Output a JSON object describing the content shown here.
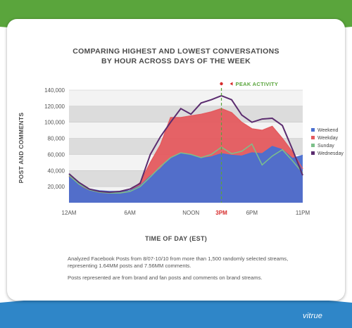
{
  "header": {
    "accent_green": "#5aa53c",
    "accent_blue": "#2f86c8"
  },
  "title_lines": [
    "COMPARING HIGHEST AND LOWEST CONVERSATIONS",
    "BY HOUR ACROSS DAYS OF THE WEEK"
  ],
  "notes": [
    "Analyzed Facebook Posts from 8/07-10/10 from more than 1,500 randomly selected streams,",
    "representing 1.64MM posts and 7.56MM comments.",
    "Posts represented are from brand and fan posts and comments on brand streams."
  ],
  "logo_text": "vitrue",
  "chart_data": {
    "type": "area",
    "xlabel": "TIME OF DAY (EST)",
    "ylabel": "POST AND COMMENTS",
    "ylim": [
      0,
      140000
    ],
    "xlim": [
      0,
      23
    ],
    "yticks": [
      20000,
      40000,
      60000,
      80000,
      100000,
      120000,
      140000
    ],
    "ytick_labels": [
      "20,000",
      "40,000",
      "60,000",
      "80,000",
      "100,000",
      "120,000",
      "140,000"
    ],
    "xticks": [
      0,
      6,
      12,
      15,
      18,
      23
    ],
    "xtick_labels": [
      "12AM",
      "6AM",
      "NOON",
      "3PM",
      "6PM",
      "11PM"
    ],
    "highlight_tick": "3PM",
    "x": [
      0,
      1,
      2,
      3,
      4,
      5,
      6,
      7,
      8,
      9,
      10,
      11,
      12,
      13,
      14,
      15,
      16,
      17,
      18,
      19,
      20,
      21,
      22,
      23
    ],
    "series": [
      {
        "name": "Weekend",
        "color": "#4a6fd0",
        "style": "area",
        "values": [
          32000,
          22000,
          17000,
          15000,
          14000,
          14000,
          15000,
          21000,
          33000,
          42000,
          56000,
          61000,
          60000,
          55000,
          57000,
          61000,
          59000,
          58000,
          62000,
          61000,
          70000,
          66000,
          55000,
          59000
        ]
      },
      {
        "name": "Weekday",
        "color": "#e45a5e",
        "style": "area",
        "values": [
          33000,
          22000,
          16000,
          13000,
          12000,
          12000,
          15000,
          25000,
          50000,
          72000,
          106000,
          106000,
          108000,
          110000,
          113000,
          117000,
          112000,
          100000,
          92000,
          90000,
          95000,
          80000,
          63000,
          42000
        ]
      },
      {
        "name": "Sunday",
        "color": "#7cc08a",
        "style": "line",
        "values": [
          34000,
          23000,
          16000,
          13000,
          12000,
          12000,
          14000,
          20000,
          32000,
          45000,
          56000,
          62000,
          60000,
          56000,
          60000,
          69000,
          61000,
          64000,
          73000,
          47000,
          58000,
          66000,
          52000,
          37000
        ]
      },
      {
        "name": "Wednesday",
        "color": "#5b2c6f",
        "style": "line",
        "values": [
          36000,
          25000,
          17000,
          14000,
          13000,
          14000,
          17000,
          24000,
          60000,
          82000,
          100000,
          117000,
          110000,
          124000,
          128000,
          133000,
          128000,
          109000,
          100000,
          104000,
          105000,
          96000,
          66000,
          34000
        ]
      }
    ],
    "annotation": {
      "label": "PEAK ACTIVITY",
      "x": 15,
      "color": "#5aa53c"
    },
    "legend_position": "right",
    "grid": true
  }
}
